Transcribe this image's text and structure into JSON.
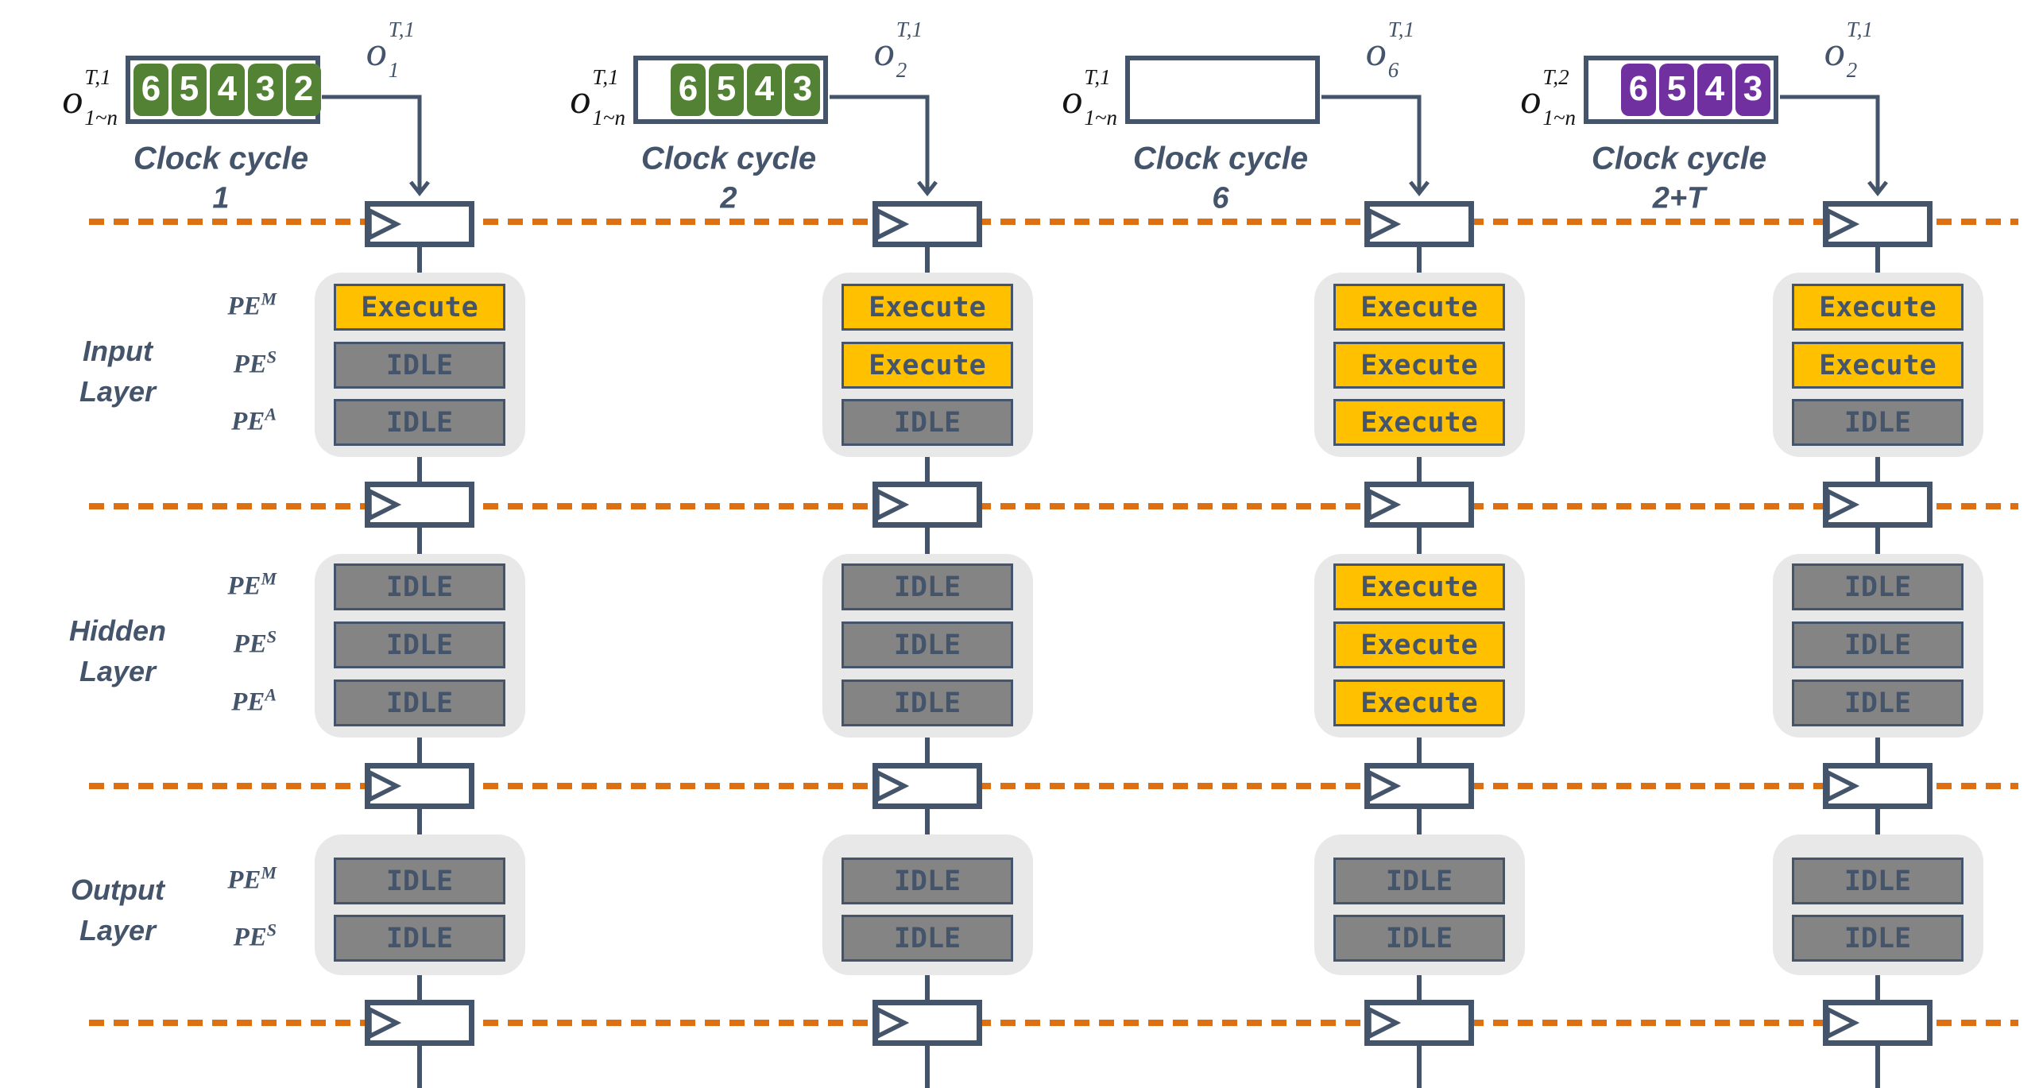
{
  "pe_base": "PE",
  "colors": {
    "slate": "#44546A",
    "orange": "#DE7014",
    "green": "#548235",
    "purple": "#7030A0",
    "yellow": "#FFC000",
    "idle_gray": "#848484",
    "container_gray": "#E9E8E8"
  },
  "layers": [
    {
      "label": [
        "Input",
        "Layer"
      ],
      "pes": [
        "M",
        "S",
        "A"
      ]
    },
    {
      "label": [
        "Hidden",
        "Layer"
      ],
      "pes": [
        "M",
        "S",
        "A"
      ]
    },
    {
      "label": [
        "Output",
        "Layer"
      ],
      "pes": [
        "M",
        "S"
      ]
    }
  ],
  "columns": [
    {
      "input_label": {
        "base": "o",
        "sup": "T,1",
        "sub": "1~n"
      },
      "queue": {
        "cells": [
          "6",
          "5",
          "4",
          "3",
          "2"
        ],
        "color": "green"
      },
      "output_label": {
        "base": "o",
        "sup": "T,1",
        "sub": "1"
      },
      "clock_label": "Clock cycle",
      "clock_value": "1",
      "states": {
        "input": [
          "Execute",
          "IDLE",
          "IDLE"
        ],
        "hidden": [
          "IDLE",
          "IDLE",
          "IDLE"
        ],
        "output": [
          "IDLE",
          "IDLE"
        ]
      }
    },
    {
      "input_label": {
        "base": "o",
        "sup": "T,1",
        "sub": "1~n"
      },
      "queue": {
        "cells": [
          "6",
          "5",
          "4",
          "3"
        ],
        "color": "green"
      },
      "output_label": {
        "base": "o",
        "sup": "T,1",
        "sub": "2"
      },
      "clock_label": "Clock cycle",
      "clock_value": "2",
      "states": {
        "input": [
          "Execute",
          "Execute",
          "IDLE"
        ],
        "hidden": [
          "IDLE",
          "IDLE",
          "IDLE"
        ],
        "output": [
          "IDLE",
          "IDLE"
        ]
      }
    },
    {
      "input_label": {
        "base": "o",
        "sup": "T,1",
        "sub": "1~n"
      },
      "queue": {
        "cells": [],
        "color": "green"
      },
      "output_label": {
        "base": "o",
        "sup": "T,1",
        "sub": "6"
      },
      "clock_label": "Clock cycle",
      "clock_value": "6",
      "states": {
        "input": [
          "Execute",
          "Execute",
          "Execute"
        ],
        "hidden": [
          "Execute",
          "Execute",
          "Execute"
        ],
        "output": [
          "IDLE",
          "IDLE"
        ]
      }
    },
    {
      "input_label": {
        "base": "o",
        "sup": "T,2",
        "sub": "1~n"
      },
      "queue": {
        "cells": [
          "6",
          "5",
          "4",
          "3"
        ],
        "color": "purple"
      },
      "output_label": {
        "base": "o",
        "sup": "T,1",
        "sub": "2"
      },
      "clock_label": "Clock cycle",
      "clock_value": "2+T",
      "states": {
        "input": [
          "Execute",
          "Execute",
          "IDLE"
        ],
        "hidden": [
          "IDLE",
          "IDLE",
          "IDLE"
        ],
        "output": [
          "IDLE",
          "IDLE"
        ]
      }
    }
  ]
}
